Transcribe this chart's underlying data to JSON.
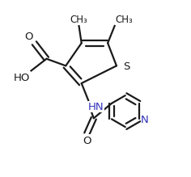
{
  "bg_color": "#ffffff",
  "line_color": "#1a1a1a",
  "atom_color_N": "#3333bb",
  "linewidth": 1.6,
  "figsize": [
    2.36,
    2.19
  ],
  "dpi": 100,
  "xlim": [
    0.0,
    1.0
  ],
  "ylim": [
    0.0,
    1.0
  ]
}
